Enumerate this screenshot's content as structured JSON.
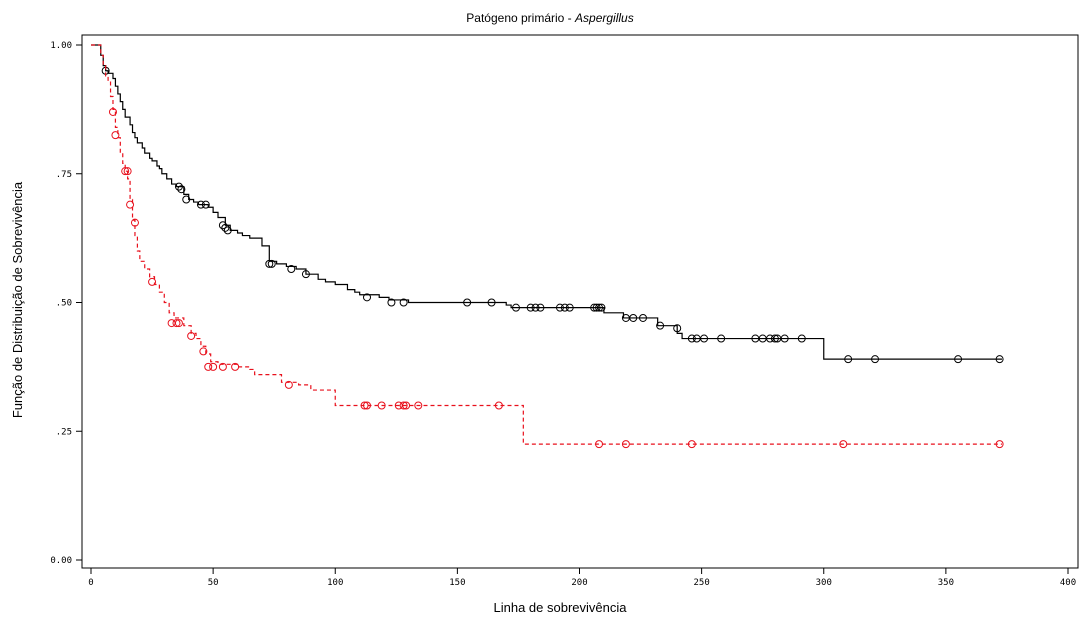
{
  "chart_data": {
    "type": "line",
    "title_prefix": "Patógeno primário - ",
    "title_italic": "Aspergillus",
    "xlabel": "Linha de sobrevivência",
    "ylabel": "Função de Distribuição de Sobrevivência",
    "xlim": [
      0,
      400
    ],
    "ylim": [
      0,
      1
    ],
    "x_ticks": [
      {
        "value": 0,
        "label": "0"
      },
      {
        "value": 50,
        "label": "50"
      },
      {
        "value": 100,
        "label": "100"
      },
      {
        "value": 150,
        "label": "150"
      },
      {
        "value": 200,
        "label": "200"
      },
      {
        "value": 250,
        "label": "250"
      },
      {
        "value": 300,
        "label": "300"
      },
      {
        "value": 350,
        "label": "350"
      },
      {
        "value": 400,
        "label": "400"
      }
    ],
    "y_ticks": [
      {
        "value": 0,
        "label": "0.00"
      },
      {
        "value": 0.25,
        "label": ".25"
      },
      {
        "value": 0.5,
        "label": ".50"
      },
      {
        "value": 0.75,
        "label": ".75"
      },
      {
        "value": 1,
        "label": "1.00"
      }
    ],
    "grid": false,
    "series": [
      {
        "color": "#000000",
        "dash": "solid",
        "steps": [
          [
            0,
            1.0
          ],
          [
            3,
            1.0
          ],
          [
            4,
            0.98
          ],
          [
            5,
            0.96
          ],
          [
            6,
            0.95
          ],
          [
            7,
            0.945
          ],
          [
            9,
            0.935
          ],
          [
            10,
            0.92
          ],
          [
            11,
            0.905
          ],
          [
            12,
            0.89
          ],
          [
            13,
            0.875
          ],
          [
            14,
            0.86
          ],
          [
            16,
            0.845
          ],
          [
            17,
            0.83
          ],
          [
            18,
            0.82
          ],
          [
            19,
            0.81
          ],
          [
            21,
            0.8
          ],
          [
            22,
            0.79
          ],
          [
            24,
            0.78
          ],
          [
            25,
            0.775
          ],
          [
            27,
            0.765
          ],
          [
            28,
            0.76
          ],
          [
            29,
            0.75
          ],
          [
            31,
            0.74
          ],
          [
            33,
            0.73
          ],
          [
            35,
            0.725
          ],
          [
            38,
            0.71
          ],
          [
            40,
            0.7
          ],
          [
            42,
            0.695
          ],
          [
            44,
            0.69
          ],
          [
            48,
            0.685
          ],
          [
            50,
            0.675
          ],
          [
            52,
            0.665
          ],
          [
            55,
            0.65
          ],
          [
            57,
            0.64
          ],
          [
            60,
            0.635
          ],
          [
            62,
            0.63
          ],
          [
            65,
            0.625
          ],
          [
            70,
            0.61
          ],
          [
            73,
            0.58
          ],
          [
            76,
            0.575
          ],
          [
            80,
            0.57
          ],
          [
            84,
            0.565
          ],
          [
            88,
            0.555
          ],
          [
            93,
            0.545
          ],
          [
            96,
            0.54
          ],
          [
            100,
            0.535
          ],
          [
            105,
            0.525
          ],
          [
            108,
            0.52
          ],
          [
            110,
            0.515
          ],
          [
            118,
            0.51
          ],
          [
            122,
            0.505
          ],
          [
            130,
            0.5
          ],
          [
            170,
            0.495
          ],
          [
            172,
            0.49
          ],
          [
            210,
            0.48
          ],
          [
            218,
            0.47
          ],
          [
            232,
            0.455
          ],
          [
            240,
            0.44
          ],
          [
            242,
            0.43
          ],
          [
            300,
            0.43
          ],
          [
            300,
            0.39
          ],
          [
            373,
            0.39
          ]
        ],
        "censored": [
          [
            6,
            0.95
          ],
          [
            36,
            0.725
          ],
          [
            37,
            0.72
          ],
          [
            39,
            0.7
          ],
          [
            45,
            0.69
          ],
          [
            47,
            0.69
          ],
          [
            54,
            0.65
          ],
          [
            55,
            0.645
          ],
          [
            56,
            0.64
          ],
          [
            73,
            0.575
          ],
          [
            74,
            0.575
          ],
          [
            82,
            0.565
          ],
          [
            88,
            0.555
          ],
          [
            113,
            0.51
          ],
          [
            123,
            0.5
          ],
          [
            128,
            0.5
          ],
          [
            154,
            0.5
          ],
          [
            164,
            0.5
          ],
          [
            174,
            0.49
          ],
          [
            180,
            0.49
          ],
          [
            182,
            0.49
          ],
          [
            184,
            0.49
          ],
          [
            192,
            0.49
          ],
          [
            194,
            0.49
          ],
          [
            196,
            0.49
          ],
          [
            206,
            0.49
          ],
          [
            207,
            0.49
          ],
          [
            208,
            0.49
          ],
          [
            209,
            0.49
          ],
          [
            219,
            0.47
          ],
          [
            222,
            0.47
          ],
          [
            226,
            0.47
          ],
          [
            233,
            0.455
          ],
          [
            240,
            0.45
          ],
          [
            246,
            0.43
          ],
          [
            248,
            0.43
          ],
          [
            251,
            0.43
          ],
          [
            258,
            0.43
          ],
          [
            272,
            0.43
          ],
          [
            275,
            0.43
          ],
          [
            278,
            0.43
          ],
          [
            280,
            0.43
          ],
          [
            281,
            0.43
          ],
          [
            284,
            0.43
          ],
          [
            291,
            0.43
          ],
          [
            310,
            0.39
          ],
          [
            321,
            0.39
          ],
          [
            355,
            0.39
          ],
          [
            372,
            0.39
          ]
        ]
      },
      {
        "color": "#e8101c",
        "dash": "dashed",
        "steps": [
          [
            0,
            1.0
          ],
          [
            3,
            1.0
          ],
          [
            4,
            0.98
          ],
          [
            5,
            0.96
          ],
          [
            6,
            0.94
          ],
          [
            7,
            0.93
          ],
          [
            8,
            0.9
          ],
          [
            9,
            0.875
          ],
          [
            10,
            0.84
          ],
          [
            11,
            0.82
          ],
          [
            12,
            0.79
          ],
          [
            13,
            0.77
          ],
          [
            14,
            0.755
          ],
          [
            15,
            0.74
          ],
          [
            16,
            0.7
          ],
          [
            17,
            0.66
          ],
          [
            18,
            0.63
          ],
          [
            19,
            0.6
          ],
          [
            20,
            0.58
          ],
          [
            22,
            0.565
          ],
          [
            24,
            0.55
          ],
          [
            26,
            0.535
          ],
          [
            28,
            0.52
          ],
          [
            30,
            0.5
          ],
          [
            32,
            0.48
          ],
          [
            34,
            0.47
          ],
          [
            38,
            0.455
          ],
          [
            41,
            0.44
          ],
          [
            43,
            0.43
          ],
          [
            45,
            0.415
          ],
          [
            47,
            0.4
          ],
          [
            49,
            0.385
          ],
          [
            52,
            0.38
          ],
          [
            60,
            0.375
          ],
          [
            65,
            0.37
          ],
          [
            67,
            0.36
          ],
          [
            78,
            0.345
          ],
          [
            85,
            0.34
          ],
          [
            90,
            0.33
          ],
          [
            100,
            0.3
          ],
          [
            177,
            0.3
          ],
          [
            177,
            0.225
          ],
          [
            373,
            0.225
          ]
        ],
        "censored": [
          [
            9,
            0.87
          ],
          [
            10,
            0.825
          ],
          [
            14,
            0.755
          ],
          [
            15,
            0.755
          ],
          [
            16,
            0.69
          ],
          [
            18,
            0.655
          ],
          [
            25,
            0.54
          ],
          [
            33,
            0.46
          ],
          [
            35,
            0.46
          ],
          [
            36,
            0.46
          ],
          [
            41,
            0.435
          ],
          [
            46,
            0.405
          ],
          [
            48,
            0.375
          ],
          [
            50,
            0.375
          ],
          [
            54,
            0.375
          ],
          [
            59,
            0.375
          ],
          [
            81,
            0.34
          ],
          [
            112,
            0.3
          ],
          [
            113,
            0.3
          ],
          [
            119,
            0.3
          ],
          [
            126,
            0.3
          ],
          [
            128,
            0.3
          ],
          [
            129,
            0.3
          ],
          [
            134,
            0.3
          ],
          [
            167,
            0.3
          ],
          [
            208,
            0.225
          ],
          [
            219,
            0.225
          ],
          [
            246,
            0.225
          ],
          [
            308,
            0.225
          ],
          [
            372,
            0.225
          ]
        ]
      }
    ]
  }
}
